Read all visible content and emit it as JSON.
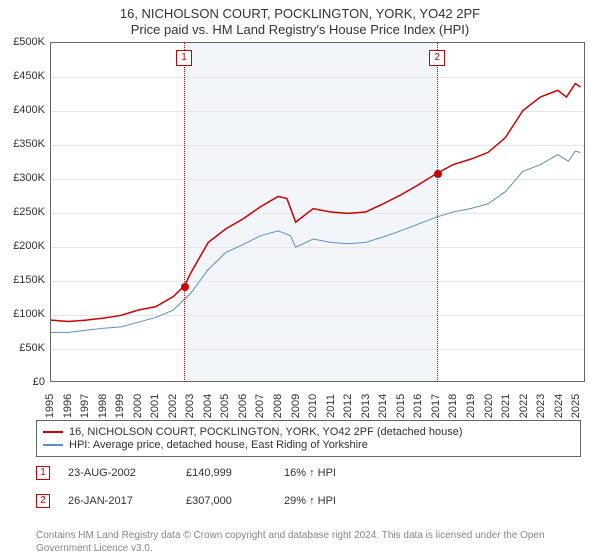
{
  "title": "16, NICHOLSON COURT, POCKLINGTON, YORK, YO42 2PF",
  "subtitle": "Price paid vs. HM Land Registry's House Price Index (HPI)",
  "chart": {
    "type": "line",
    "xlim": [
      1995,
      2025.5
    ],
    "ylim": [
      0,
      500000
    ],
    "ytick_step": 50000,
    "ytick_labels": [
      "£0",
      "£50K",
      "£100K",
      "£150K",
      "£200K",
      "£250K",
      "£300K",
      "£350K",
      "£400K",
      "£450K",
      "£500K"
    ],
    "xticks": [
      1995,
      1996,
      1997,
      1998,
      1999,
      2000,
      2001,
      2002,
      2003,
      2004,
      2005,
      2006,
      2007,
      2008,
      2009,
      2010,
      2011,
      2012,
      2013,
      2014,
      2015,
      2016,
      2017,
      2018,
      2019,
      2020,
      2021,
      2022,
      2023,
      2024,
      2025
    ],
    "grid_color": "#e6e6e6",
    "background_color": "#ffffff",
    "shaded_band": {
      "from": 2002.64,
      "to": 2017.07,
      "fill": "rgba(70,130,200,0.07)"
    },
    "ref_lines": [
      {
        "x": 2002.64,
        "label": "1",
        "color": "#cc0000"
      },
      {
        "x": 2017.07,
        "label": "2",
        "color": "#cc0000"
      }
    ],
    "series": [
      {
        "name": "price_paid",
        "label": "16, NICHOLSON COURT, POCKLINGTON, YORK, YO42 2PF (detached house)",
        "color": "#cc0000",
        "line_width": 1.5,
        "data": [
          [
            1995,
            90000
          ],
          [
            1996,
            88000
          ],
          [
            1997,
            90000
          ],
          [
            1998,
            93000
          ],
          [
            1999,
            97000
          ],
          [
            2000,
            105000
          ],
          [
            2001,
            110000
          ],
          [
            2002,
            125000
          ],
          [
            2002.64,
            140999
          ],
          [
            2003,
            160000
          ],
          [
            2004,
            205000
          ],
          [
            2005,
            225000
          ],
          [
            2006,
            240000
          ],
          [
            2007,
            258000
          ],
          [
            2008,
            273000
          ],
          [
            2008.5,
            270000
          ],
          [
            2009,
            235000
          ],
          [
            2010,
            255000
          ],
          [
            2011,
            250000
          ],
          [
            2012,
            248000
          ],
          [
            2013,
            250000
          ],
          [
            2014,
            262000
          ],
          [
            2015,
            275000
          ],
          [
            2016,
            290000
          ],
          [
            2017.07,
            307000
          ],
          [
            2018,
            320000
          ],
          [
            2019,
            328000
          ],
          [
            2020,
            338000
          ],
          [
            2021,
            360000
          ],
          [
            2022,
            400000
          ],
          [
            2023,
            420000
          ],
          [
            2024,
            430000
          ],
          [
            2024.5,
            420000
          ],
          [
            2025,
            440000
          ],
          [
            2025.3,
            435000
          ]
        ],
        "markers": [
          {
            "x": 2002.64,
            "y": 140999
          },
          {
            "x": 2017.07,
            "y": 307000
          }
        ]
      },
      {
        "name": "hpi",
        "label": "HPI: Average price, detached house, East Riding of Yorkshire",
        "color": "#5b8fc7",
        "line_width": 1,
        "data": [
          [
            1995,
            72000
          ],
          [
            1996,
            72000
          ],
          [
            1997,
            75000
          ],
          [
            1998,
            78000
          ],
          [
            1999,
            80000
          ],
          [
            2000,
            87000
          ],
          [
            2001,
            94000
          ],
          [
            2002,
            105000
          ],
          [
            2003,
            130000
          ],
          [
            2004,
            165000
          ],
          [
            2005,
            190000
          ],
          [
            2006,
            202000
          ],
          [
            2007,
            215000
          ],
          [
            2008,
            222000
          ],
          [
            2008.7,
            215000
          ],
          [
            2009,
            198000
          ],
          [
            2010,
            210000
          ],
          [
            2011,
            205000
          ],
          [
            2012,
            203000
          ],
          [
            2013,
            205000
          ],
          [
            2014,
            213000
          ],
          [
            2015,
            222000
          ],
          [
            2016,
            232000
          ],
          [
            2017,
            242000
          ],
          [
            2018,
            250000
          ],
          [
            2019,
            255000
          ],
          [
            2020,
            262000
          ],
          [
            2021,
            280000
          ],
          [
            2022,
            310000
          ],
          [
            2023,
            320000
          ],
          [
            2024,
            335000
          ],
          [
            2024.6,
            325000
          ],
          [
            2025,
            340000
          ],
          [
            2025.3,
            338000
          ]
        ]
      }
    ]
  },
  "legend": {
    "rows": [
      {
        "color": "#cc0000",
        "text": "16, NICHOLSON COURT, POCKLINGTON, YORK, YO42 2PF (detached house)"
      },
      {
        "color": "#5b8fc7",
        "text": "HPI: Average price, detached house, East Riding of Yorkshire"
      }
    ]
  },
  "sales": [
    {
      "num": "1",
      "date": "23-AUG-2002",
      "price": "£140,999",
      "delta": "16% ↑ HPI"
    },
    {
      "num": "2",
      "date": "26-JAN-2017",
      "price": "£307,000",
      "delta": "29% ↑ HPI"
    }
  ],
  "footnote": "Contains HM Land Registry data © Crown copyright and database right 2024. This data is licensed under the Open Government Licence v3.0."
}
